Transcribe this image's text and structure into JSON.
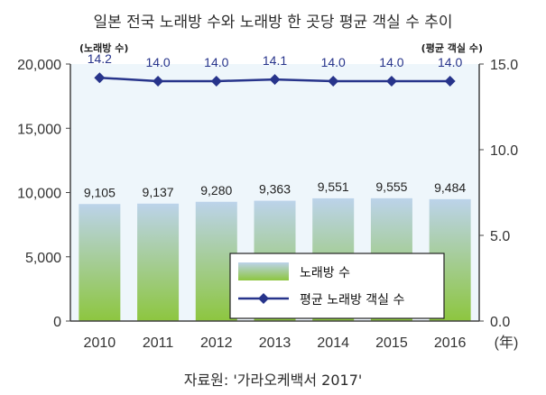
{
  "title": "일본 전국 노래방 수와 노래방 한 곳당 평균 객실 수 추이",
  "source": "자료원: '가라오케백서 2017'",
  "colors": {
    "plot_bg": "#eef6fb",
    "bar_top": "#bcd3ea",
    "bar_bottom": "#8dc63f",
    "line": "#27348b",
    "bar_label": "#222222",
    "line_label": "#27348b"
  },
  "chart_data": {
    "type": "bar+line",
    "title": "일본 전국 노래방 수와 노래방 한 곳당 평균 객실 수 추이",
    "categories": [
      "2010",
      "2011",
      "2012",
      "2013",
      "2014",
      "2015",
      "2016"
    ],
    "x_unit": "(年)",
    "y_left": {
      "unit_label": "(노래방 수)",
      "ylim": [
        0,
        20000
      ],
      "ticks": [
        "0",
        "5,000",
        "10,000",
        "15,000",
        "20,000"
      ],
      "tick_values": [
        0,
        5000,
        10000,
        15000,
        20000
      ]
    },
    "y_right": {
      "unit_label": "(평균 객실 수)",
      "ylim": [
        0,
        15
      ],
      "ticks": [
        "0.0",
        "5.0",
        "10.0",
        "15.0"
      ],
      "tick_values": [
        0,
        5,
        10,
        15
      ]
    },
    "series": [
      {
        "name": "노래방 수",
        "type": "bar",
        "axis": "left",
        "values": [
          9105,
          9137,
          9280,
          9363,
          9551,
          9555,
          9484
        ],
        "labels": [
          "9,105",
          "9,137",
          "9,280",
          "9,363",
          "9,551",
          "9,555",
          "9,484"
        ]
      },
      {
        "name": "평균 노래방 객실 수",
        "type": "line",
        "axis": "right",
        "values": [
          14.2,
          14.0,
          14.0,
          14.1,
          14.0,
          14.0,
          14.0
        ],
        "labels": [
          "14.2",
          "14.0",
          "14.0",
          "14.1",
          "14.0",
          "14.0",
          "14.0"
        ]
      }
    ],
    "legend": {
      "placement": "bottom-right",
      "items": [
        "노래방 수",
        "평균 노래방 객실 수"
      ]
    },
    "grid": false
  }
}
